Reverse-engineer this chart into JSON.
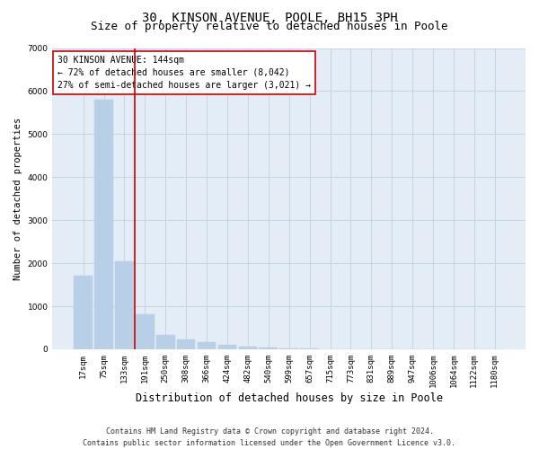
{
  "title": "30, KINSON AVENUE, POOLE, BH15 3PH",
  "subtitle": "Size of property relative to detached houses in Poole",
  "xlabel": "Distribution of detached houses by size in Poole",
  "ylabel": "Number of detached properties",
  "categories": [
    "17sqm",
    "75sqm",
    "133sqm",
    "191sqm",
    "250sqm",
    "308sqm",
    "366sqm",
    "424sqm",
    "482sqm",
    "540sqm",
    "599sqm",
    "657sqm",
    "715sqm",
    "773sqm",
    "831sqm",
    "889sqm",
    "947sqm",
    "1006sqm",
    "1064sqm",
    "1122sqm",
    "1180sqm"
  ],
  "values": [
    1700,
    5800,
    2050,
    820,
    340,
    230,
    160,
    95,
    65,
    45,
    25,
    15,
    0,
    0,
    0,
    0,
    0,
    0,
    0,
    0,
    0
  ],
  "bar_color": "#b8cfe8",
  "bar_edge_color": "#b8cfe8",
  "grid_color": "#c8d4e4",
  "bg_color": "#e4ecf5",
  "property_bin_index": 2,
  "annotation_text": "30 KINSON AVENUE: 144sqm\n← 72% of detached houses are smaller (8,042)\n27% of semi-detached houses are larger (3,021) →",
  "annotation_box_color": "#ffffff",
  "annotation_border_color": "#cc0000",
  "vline_color": "#cc0000",
  "footer1": "Contains HM Land Registry data © Crown copyright and database right 2024.",
  "footer2": "Contains public sector information licensed under the Open Government Licence v3.0.",
  "ylim": [
    0,
    7000
  ],
  "title_fontsize": 10,
  "subtitle_fontsize": 9,
  "xlabel_fontsize": 8.5,
  "ylabel_fontsize": 7.5,
  "tick_fontsize": 6.5,
  "annotation_fontsize": 7.0,
  "footer_fontsize": 6.0
}
